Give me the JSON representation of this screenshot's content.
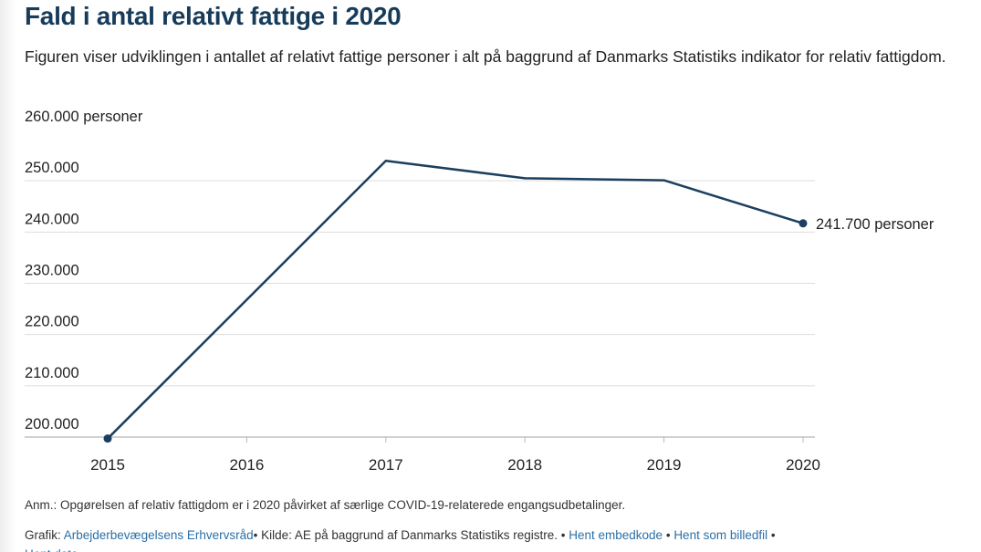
{
  "title": "Fald i antal relativt fattige i 2020",
  "subtitle": "Figuren viser udviklingen i antallet af relativt fattige personer i alt på baggrund af Danmarks Statistiks indikator for relativ fattigdom.",
  "chart_data": {
    "type": "line",
    "x": [
      "2015",
      "2016",
      "2017",
      "2018",
      "2019",
      "2020"
    ],
    "series": [
      {
        "values": [
          199700,
          226800,
          253900,
          250500,
          250100,
          241700
        ]
      }
    ],
    "ylim": [
      200000,
      260000
    ],
    "yticks": [
      {
        "value": 260000,
        "label": "260.000 personer"
      },
      {
        "value": 250000,
        "label": "250.000"
      },
      {
        "value": 240000,
        "label": "240.000"
      },
      {
        "value": 230000,
        "label": "230.000"
      },
      {
        "value": 220000,
        "label": "220.000"
      },
      {
        "value": 210000,
        "label": "210.000"
      },
      {
        "value": 200000,
        "label": "200.000"
      }
    ],
    "end_label": "241.700 personer",
    "grid": true,
    "line_color": "#1b3f5e",
    "grid_color": "#dddddd"
  },
  "footer": {
    "anm": "Anm.: Opgørelsen af relativ fattigdom er i 2020 påvirket af særlige COVID-19-relaterede engangsudbetalinger.",
    "grafik_label": "Grafik: ",
    "grafik_link": "Arbejderbevægelsens Erhvervsråd",
    "kilde": "• Kilde: AE på baggrund af Danmarks Statistiks registre. • ",
    "embed_link": "Hent embedkode",
    "sep": " • ",
    "image_link": "Hent som billedfil",
    "sep2": " •",
    "data_link": "Hent data"
  }
}
